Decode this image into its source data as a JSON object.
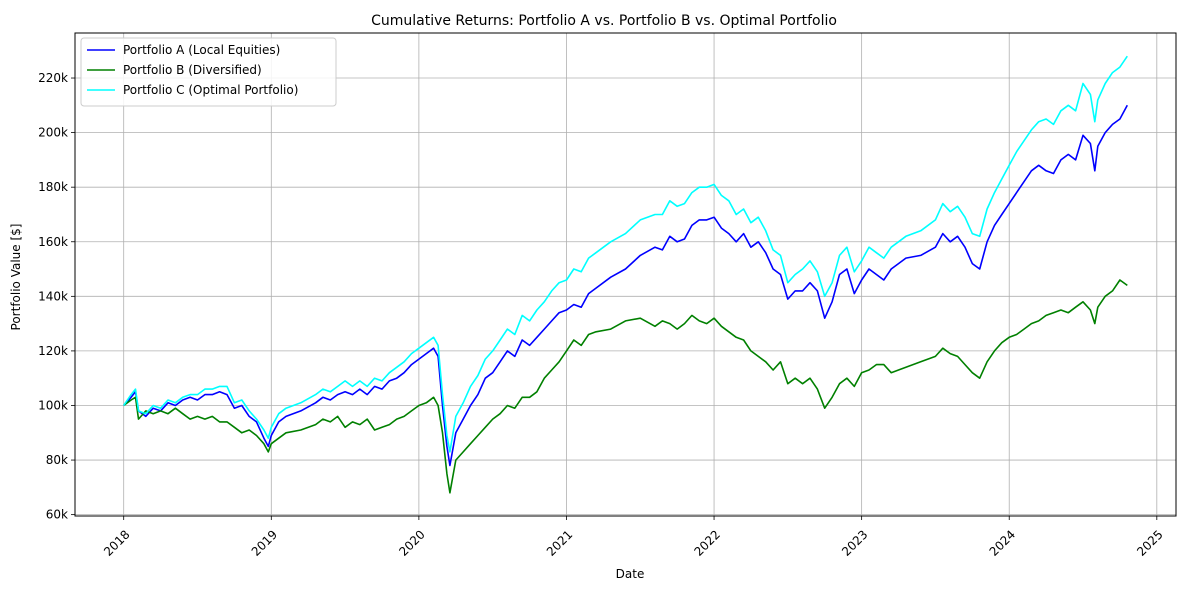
{
  "chart_data": {
    "type": "line",
    "title": "Cumulative Returns: Portfolio A vs. Portfolio B vs. Optimal Portfolio",
    "xlabel": "Date",
    "ylabel": "Portfolio Value [$]",
    "x_tick_labels": [
      "2018",
      "2019",
      "2020",
      "2021",
      "2022",
      "2023",
      "2024",
      "2025"
    ],
    "y_tick_labels": [
      "60k",
      "80k",
      "100k",
      "120k",
      "140k",
      "160k",
      "180k",
      "200k",
      "220k"
    ],
    "y_ticks": [
      60000,
      80000,
      100000,
      120000,
      140000,
      160000,
      180000,
      200000,
      220000
    ],
    "x_ticks": [
      2018,
      2019,
      2020,
      2021,
      2022,
      2023,
      2024,
      2025
    ],
    "xlim": [
      2017.67,
      2025.13
    ],
    "ylim": [
      59500,
      236500
    ],
    "grid": true,
    "legend_position": "top-left",
    "series": [
      {
        "name": "Portfolio A (Local Equities)",
        "color": "#0000ff",
        "x": [
          2018.0,
          2018.05,
          2018.08,
          2018.1,
          2018.15,
          2018.2,
          2018.25,
          2018.3,
          2018.35,
          2018.4,
          2018.45,
          2018.5,
          2018.55,
          2018.6,
          2018.65,
          2018.7,
          2018.75,
          2018.8,
          2018.85,
          2018.9,
          2018.95,
          2018.98,
          2019.0,
          2019.05,
          2019.1,
          2019.2,
          2019.3,
          2019.35,
          2019.4,
          2019.45,
          2019.5,
          2019.55,
          2019.6,
          2019.65,
          2019.7,
          2019.75,
          2019.8,
          2019.85,
          2019.9,
          2019.95,
          2020.0,
          2020.05,
          2020.1,
          2020.13,
          2020.16,
          2020.19,
          2020.21,
          2020.25,
          2020.3,
          2020.35,
          2020.4,
          2020.45,
          2020.5,
          2020.55,
          2020.6,
          2020.65,
          2020.7,
          2020.75,
          2020.8,
          2020.85,
          2020.9,
          2020.95,
          2021.0,
          2021.05,
          2021.1,
          2021.15,
          2021.2,
          2021.3,
          2021.4,
          2021.5,
          2021.6,
          2021.65,
          2021.7,
          2021.75,
          2021.8,
          2021.85,
          2021.9,
          2021.95,
          2022.0,
          2022.05,
          2022.1,
          2022.15,
          2022.2,
          2022.25,
          2022.3,
          2022.35,
          2022.4,
          2022.45,
          2022.5,
          2022.55,
          2022.6,
          2022.65,
          2022.7,
          2022.75,
          2022.8,
          2022.85,
          2022.9,
          2022.95,
          2023.0,
          2023.05,
          2023.1,
          2023.15,
          2023.2,
          2023.25,
          2023.3,
          2023.4,
          2023.5,
          2023.55,
          2023.6,
          2023.65,
          2023.7,
          2023.75,
          2023.8,
          2023.85,
          2023.9,
          2023.95,
          2024.0,
          2024.05,
          2024.1,
          2024.15,
          2024.2,
          2024.25,
          2024.3,
          2024.35,
          2024.4,
          2024.45,
          2024.5,
          2024.55,
          2024.58,
          2024.6,
          2024.65,
          2024.7,
          2024.75,
          2024.8
        ],
        "y": [
          100000,
          103000,
          105000,
          98000,
          96000,
          99000,
          98000,
          101000,
          100000,
          102000,
          103000,
          102000,
          104000,
          104000,
          105000,
          104000,
          99000,
          100000,
          96000,
          94000,
          88000,
          85000,
          89000,
          94000,
          96000,
          98000,
          101000,
          103000,
          102000,
          104000,
          105000,
          104000,
          106000,
          104000,
          107000,
          106000,
          109000,
          110000,
          112000,
          115000,
          117000,
          119000,
          121000,
          118000,
          100000,
          85000,
          78000,
          90000,
          95000,
          100000,
          104000,
          110000,
          112000,
          116000,
          120000,
          118000,
          124000,
          122000,
          125000,
          128000,
          131000,
          134000,
          135000,
          137000,
          136000,
          141000,
          143000,
          147000,
          150000,
          155000,
          158000,
          157000,
          162000,
          160000,
          161000,
          166000,
          168000,
          168000,
          169000,
          165000,
          163000,
          160000,
          163000,
          158000,
          160000,
          156000,
          150000,
          148000,
          139000,
          142000,
          142000,
          145000,
          142000,
          132000,
          138000,
          148000,
          150000,
          141000,
          146000,
          150000,
          148000,
          146000,
          150000,
          152000,
          154000,
          155000,
          158000,
          163000,
          160000,
          162000,
          158000,
          152000,
          150000,
          160000,
          166000,
          170000,
          174000,
          178000,
          182000,
          186000,
          188000,
          186000,
          185000,
          190000,
          192000,
          190000,
          199000,
          196000,
          186000,
          195000,
          200000,
          203000,
          205000,
          210000
        ]
      },
      {
        "name": "Portfolio B (Diversified)",
        "color": "#008000",
        "x": [
          2018.0,
          2018.05,
          2018.08,
          2018.1,
          2018.15,
          2018.2,
          2018.25,
          2018.3,
          2018.35,
          2018.4,
          2018.45,
          2018.5,
          2018.55,
          2018.6,
          2018.65,
          2018.7,
          2018.75,
          2018.8,
          2018.85,
          2018.9,
          2018.95,
          2018.98,
          2019.0,
          2019.05,
          2019.1,
          2019.2,
          2019.3,
          2019.35,
          2019.4,
          2019.45,
          2019.5,
          2019.55,
          2019.6,
          2019.65,
          2019.7,
          2019.75,
          2019.8,
          2019.85,
          2019.9,
          2019.95,
          2020.0,
          2020.05,
          2020.1,
          2020.13,
          2020.16,
          2020.19,
          2020.21,
          2020.25,
          2020.3,
          2020.35,
          2020.4,
          2020.45,
          2020.5,
          2020.55,
          2020.6,
          2020.65,
          2020.7,
          2020.75,
          2020.8,
          2020.85,
          2020.9,
          2020.95,
          2021.0,
          2021.05,
          2021.1,
          2021.15,
          2021.2,
          2021.3,
          2021.4,
          2021.5,
          2021.6,
          2021.65,
          2021.7,
          2021.75,
          2021.8,
          2021.85,
          2021.9,
          2021.95,
          2022.0,
          2022.05,
          2022.1,
          2022.15,
          2022.2,
          2022.25,
          2022.3,
          2022.35,
          2022.4,
          2022.45,
          2022.5,
          2022.55,
          2022.6,
          2022.65,
          2022.7,
          2022.75,
          2022.8,
          2022.85,
          2022.9,
          2022.95,
          2023.0,
          2023.05,
          2023.1,
          2023.15,
          2023.2,
          2023.25,
          2023.3,
          2023.4,
          2023.5,
          2023.55,
          2023.6,
          2023.65,
          2023.7,
          2023.75,
          2023.8,
          2023.85,
          2023.9,
          2023.95,
          2024.0,
          2024.05,
          2024.1,
          2024.15,
          2024.2,
          2024.25,
          2024.3,
          2024.35,
          2024.4,
          2024.45,
          2024.5,
          2024.55,
          2024.58,
          2024.6,
          2024.65,
          2024.7,
          2024.75,
          2024.8
        ],
        "y": [
          100000,
          102000,
          103000,
          95000,
          98000,
          97000,
          98000,
          97000,
          99000,
          97000,
          95000,
          96000,
          95000,
          96000,
          94000,
          94000,
          92000,
          90000,
          91000,
          89000,
          86000,
          83000,
          86000,
          88000,
          90000,
          91000,
          93000,
          95000,
          94000,
          96000,
          92000,
          94000,
          93000,
          95000,
          91000,
          92000,
          93000,
          95000,
          96000,
          98000,
          100000,
          101000,
          103000,
          100000,
          90000,
          75000,
          68000,
          80000,
          83000,
          86000,
          89000,
          92000,
          95000,
          97000,
          100000,
          99000,
          103000,
          103000,
          105000,
          110000,
          113000,
          116000,
          120000,
          124000,
          122000,
          126000,
          127000,
          128000,
          131000,
          132000,
          129000,
          131000,
          130000,
          128000,
          130000,
          133000,
          131000,
          130000,
          132000,
          129000,
          127000,
          125000,
          124000,
          120000,
          118000,
          116000,
          113000,
          116000,
          108000,
          110000,
          108000,
          110000,
          106000,
          99000,
          103000,
          108000,
          110000,
          107000,
          112000,
          113000,
          115000,
          115000,
          112000,
          113000,
          114000,
          116000,
          118000,
          121000,
          119000,
          118000,
          115000,
          112000,
          110000,
          116000,
          120000,
          123000,
          125000,
          126000,
          128000,
          130000,
          131000,
          133000,
          134000,
          135000,
          134000,
          136000,
          138000,
          135000,
          130000,
          136000,
          140000,
          142000,
          146000,
          144000
        ]
      },
      {
        "name": "Portfolio C (Optimal Portfolio)",
        "color": "#00ffff",
        "x": [
          2018.0,
          2018.05,
          2018.08,
          2018.1,
          2018.15,
          2018.2,
          2018.25,
          2018.3,
          2018.35,
          2018.4,
          2018.45,
          2018.5,
          2018.55,
          2018.6,
          2018.65,
          2018.7,
          2018.75,
          2018.8,
          2018.85,
          2018.9,
          2018.95,
          2018.98,
          2019.0,
          2019.05,
          2019.1,
          2019.2,
          2019.3,
          2019.35,
          2019.4,
          2019.45,
          2019.5,
          2019.55,
          2019.6,
          2019.65,
          2019.7,
          2019.75,
          2019.8,
          2019.85,
          2019.9,
          2019.95,
          2020.0,
          2020.05,
          2020.1,
          2020.13,
          2020.16,
          2020.19,
          2020.21,
          2020.25,
          2020.3,
          2020.35,
          2020.4,
          2020.45,
          2020.5,
          2020.55,
          2020.6,
          2020.65,
          2020.7,
          2020.75,
          2020.8,
          2020.85,
          2020.9,
          2020.95,
          2021.0,
          2021.05,
          2021.1,
          2021.15,
          2021.2,
          2021.3,
          2021.4,
          2021.5,
          2021.6,
          2021.65,
          2021.7,
          2021.75,
          2021.8,
          2021.85,
          2021.9,
          2021.95,
          2022.0,
          2022.05,
          2022.1,
          2022.15,
          2022.2,
          2022.25,
          2022.3,
          2022.35,
          2022.4,
          2022.45,
          2022.5,
          2022.55,
          2022.6,
          2022.65,
          2022.7,
          2022.75,
          2022.8,
          2022.85,
          2022.9,
          2022.95,
          2023.0,
          2023.05,
          2023.1,
          2023.15,
          2023.2,
          2023.25,
          2023.3,
          2023.4,
          2023.5,
          2023.55,
          2023.6,
          2023.65,
          2023.7,
          2023.75,
          2023.8,
          2023.85,
          2023.9,
          2023.95,
          2024.0,
          2024.05,
          2024.1,
          2024.15,
          2024.2,
          2024.25,
          2024.3,
          2024.35,
          2024.4,
          2024.45,
          2024.5,
          2024.55,
          2024.58,
          2024.6,
          2024.65,
          2024.7,
          2024.75,
          2024.8
        ],
        "y": [
          100000,
          104000,
          106000,
          98000,
          97000,
          100000,
          99000,
          102000,
          101000,
          103000,
          104000,
          104000,
          106000,
          106000,
          107000,
          107000,
          101000,
          102000,
          98000,
          95000,
          91000,
          88000,
          92000,
          97000,
          99000,
          101000,
          104000,
          106000,
          105000,
          107000,
          109000,
          107000,
          109000,
          107000,
          110000,
          109000,
          112000,
          114000,
          116000,
          119000,
          121000,
          123000,
          125000,
          122000,
          104000,
          89000,
          83000,
          96000,
          101000,
          107000,
          111000,
          117000,
          120000,
          124000,
          128000,
          126000,
          133000,
          131000,
          135000,
          138000,
          142000,
          145000,
          146000,
          150000,
          149000,
          154000,
          156000,
          160000,
          163000,
          168000,
          170000,
          170000,
          175000,
          173000,
          174000,
          178000,
          180000,
          180000,
          181000,
          177000,
          175000,
          170000,
          172000,
          167000,
          169000,
          164000,
          157000,
          155000,
          145000,
          148000,
          150000,
          153000,
          149000,
          140000,
          145000,
          155000,
          158000,
          149000,
          153000,
          158000,
          156000,
          154000,
          158000,
          160000,
          162000,
          164000,
          168000,
          174000,
          171000,
          173000,
          169000,
          163000,
          162000,
          172000,
          178000,
          183000,
          188000,
          193000,
          197000,
          201000,
          204000,
          205000,
          203000,
          208000,
          210000,
          208000,
          218000,
          214000,
          204000,
          212000,
          218000,
          222000,
          224000,
          228000
        ]
      }
    ]
  }
}
